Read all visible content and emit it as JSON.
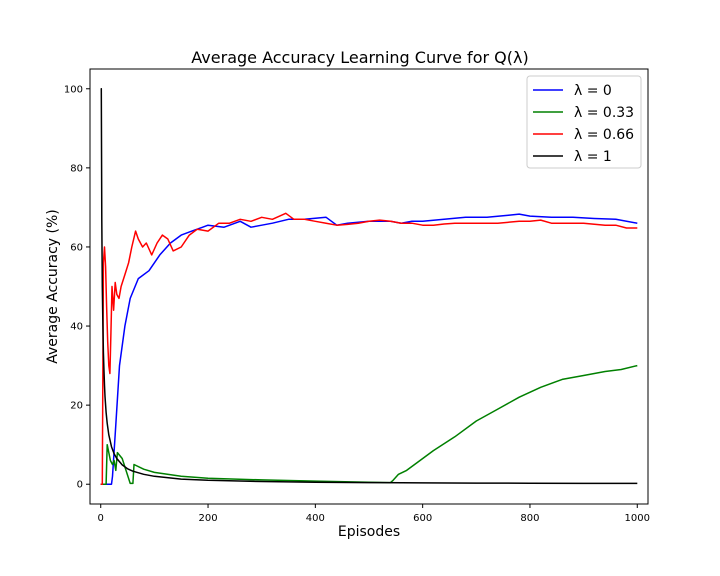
{
  "chart_data": {
    "type": "line",
    "title": "Average Accuracy Learning Curve for Q(λ)",
    "xlabel": "Episodes",
    "ylabel": "Average Accuracy (%)",
    "xlim": [
      -20,
      1020
    ],
    "ylim": [
      -5,
      105
    ],
    "xticks": [
      0,
      200,
      400,
      600,
      800,
      1000
    ],
    "yticks": [
      0,
      20,
      40,
      60,
      80,
      100
    ],
    "grid": false,
    "legend_position": "top-right",
    "series": [
      {
        "name": "λ = 0",
        "color": "#0000ff",
        "points": [
          [
            0,
            0
          ],
          [
            20,
            0
          ],
          [
            22,
            2
          ],
          [
            28,
            15
          ],
          [
            35,
            30
          ],
          [
            45,
            40
          ],
          [
            55,
            47
          ],
          [
            70,
            52
          ],
          [
            90,
            54
          ],
          [
            110,
            58
          ],
          [
            130,
            61
          ],
          [
            150,
            63
          ],
          [
            170,
            64
          ],
          [
            190,
            65
          ],
          [
            200,
            65.5
          ],
          [
            230,
            65
          ],
          [
            260,
            66.5
          ],
          [
            280,
            65
          ],
          [
            300,
            65.5
          ],
          [
            320,
            66
          ],
          [
            350,
            67
          ],
          [
            380,
            67
          ],
          [
            420,
            67.5
          ],
          [
            440,
            65.5
          ],
          [
            460,
            66
          ],
          [
            500,
            66.5
          ],
          [
            540,
            66.5
          ],
          [
            560,
            66
          ],
          [
            580,
            66.5
          ],
          [
            600,
            66.5
          ],
          [
            640,
            67
          ],
          [
            680,
            67.5
          ],
          [
            720,
            67.5
          ],
          [
            760,
            68
          ],
          [
            780,
            68.3
          ],
          [
            800,
            67.8
          ],
          [
            840,
            67.5
          ],
          [
            880,
            67.5
          ],
          [
            920,
            67.2
          ],
          [
            960,
            67
          ],
          [
            1000,
            66
          ]
        ]
      },
      {
        "name": "λ = 0.33",
        "color": "#008000",
        "points": [
          [
            0,
            0
          ],
          [
            10,
            0
          ],
          [
            12,
            10
          ],
          [
            18,
            6
          ],
          [
            22,
            5
          ],
          [
            25,
            6
          ],
          [
            28,
            3.5
          ],
          [
            31,
            8
          ],
          [
            40,
            6.5
          ],
          [
            55,
            0.2
          ],
          [
            60,
            0.2
          ],
          [
            62,
            5
          ],
          [
            80,
            3.8
          ],
          [
            100,
            3
          ],
          [
            150,
            2
          ],
          [
            200,
            1.5
          ],
          [
            300,
            1.1
          ],
          [
            400,
            0.8
          ],
          [
            500,
            0.5
          ],
          [
            540,
            0.4
          ],
          [
            545,
            1
          ],
          [
            555,
            2.5
          ],
          [
            570,
            3.5
          ],
          [
            590,
            5.5
          ],
          [
            620,
            8.5
          ],
          [
            660,
            12
          ],
          [
            700,
            16
          ],
          [
            740,
            19
          ],
          [
            780,
            22
          ],
          [
            820,
            24.5
          ],
          [
            860,
            26.5
          ],
          [
            900,
            27.5
          ],
          [
            940,
            28.5
          ],
          [
            970,
            29
          ],
          [
            1000,
            30
          ]
        ]
      },
      {
        "name": "λ = 0.66",
        "color": "#ff0000",
        "points": [
          [
            0,
            0
          ],
          [
            3,
            0
          ],
          [
            5,
            56
          ],
          [
            7,
            60
          ],
          [
            9,
            55
          ],
          [
            11,
            45
          ],
          [
            13,
            36
          ],
          [
            15,
            30
          ],
          [
            17,
            28
          ],
          [
            19,
            38
          ],
          [
            21,
            50
          ],
          [
            24,
            44
          ],
          [
            27,
            51
          ],
          [
            30,
            48
          ],
          [
            34,
            47
          ],
          [
            38,
            50
          ],
          [
            45,
            53
          ],
          [
            52,
            56
          ],
          [
            58,
            60
          ],
          [
            65,
            64
          ],
          [
            70,
            62
          ],
          [
            78,
            60
          ],
          [
            85,
            61
          ],
          [
            95,
            58
          ],
          [
            105,
            61
          ],
          [
            115,
            63
          ],
          [
            125,
            62
          ],
          [
            135,
            59
          ],
          [
            150,
            60
          ],
          [
            165,
            63
          ],
          [
            180,
            64.5
          ],
          [
            200,
            64
          ],
          [
            220,
            66
          ],
          [
            240,
            66
          ],
          [
            260,
            67
          ],
          [
            280,
            66.5
          ],
          [
            300,
            67.5
          ],
          [
            320,
            67
          ],
          [
            345,
            68.5
          ],
          [
            360,
            67
          ],
          [
            380,
            67
          ],
          [
            400,
            66.5
          ],
          [
            420,
            66
          ],
          [
            440,
            65.5
          ],
          [
            460,
            65.7
          ],
          [
            480,
            66
          ],
          [
            500,
            66.5
          ],
          [
            520,
            66.8
          ],
          [
            540,
            66.5
          ],
          [
            560,
            66
          ],
          [
            580,
            66
          ],
          [
            600,
            65.5
          ],
          [
            620,
            65.5
          ],
          [
            640,
            65.8
          ],
          [
            660,
            66
          ],
          [
            700,
            66
          ],
          [
            740,
            66
          ],
          [
            780,
            66.5
          ],
          [
            800,
            66.5
          ],
          [
            820,
            66.8
          ],
          [
            840,
            66
          ],
          [
            860,
            66
          ],
          [
            900,
            66
          ],
          [
            940,
            65.5
          ],
          [
            960,
            65.5
          ],
          [
            980,
            64.8
          ],
          [
            1000,
            64.8
          ]
        ]
      },
      {
        "name": "λ = 1",
        "color": "#000000",
        "points": [
          [
            0,
            100
          ],
          [
            1,
            100
          ],
          [
            2,
            66.7
          ],
          [
            3,
            50
          ],
          [
            4,
            40
          ],
          [
            5,
            33.3
          ],
          [
            6,
            28.6
          ],
          [
            7,
            25
          ],
          [
            8,
            22.2
          ],
          [
            10,
            18.2
          ],
          [
            12,
            15.4
          ],
          [
            15,
            12.5
          ],
          [
            20,
            9.5
          ],
          [
            25,
            7.7
          ],
          [
            30,
            6.5
          ],
          [
            40,
            4.9
          ],
          [
            50,
            3.9
          ],
          [
            60,
            3.3
          ],
          [
            80,
            2.5
          ],
          [
            100,
            2
          ],
          [
            150,
            1.3
          ],
          [
            200,
            1
          ],
          [
            300,
            0.7
          ],
          [
            400,
            0.5
          ],
          [
            500,
            0.4
          ],
          [
            600,
            0.33
          ],
          [
            700,
            0.28
          ],
          [
            800,
            0.25
          ],
          [
            900,
            0.22
          ],
          [
            1000,
            0.2
          ]
        ]
      }
    ]
  }
}
